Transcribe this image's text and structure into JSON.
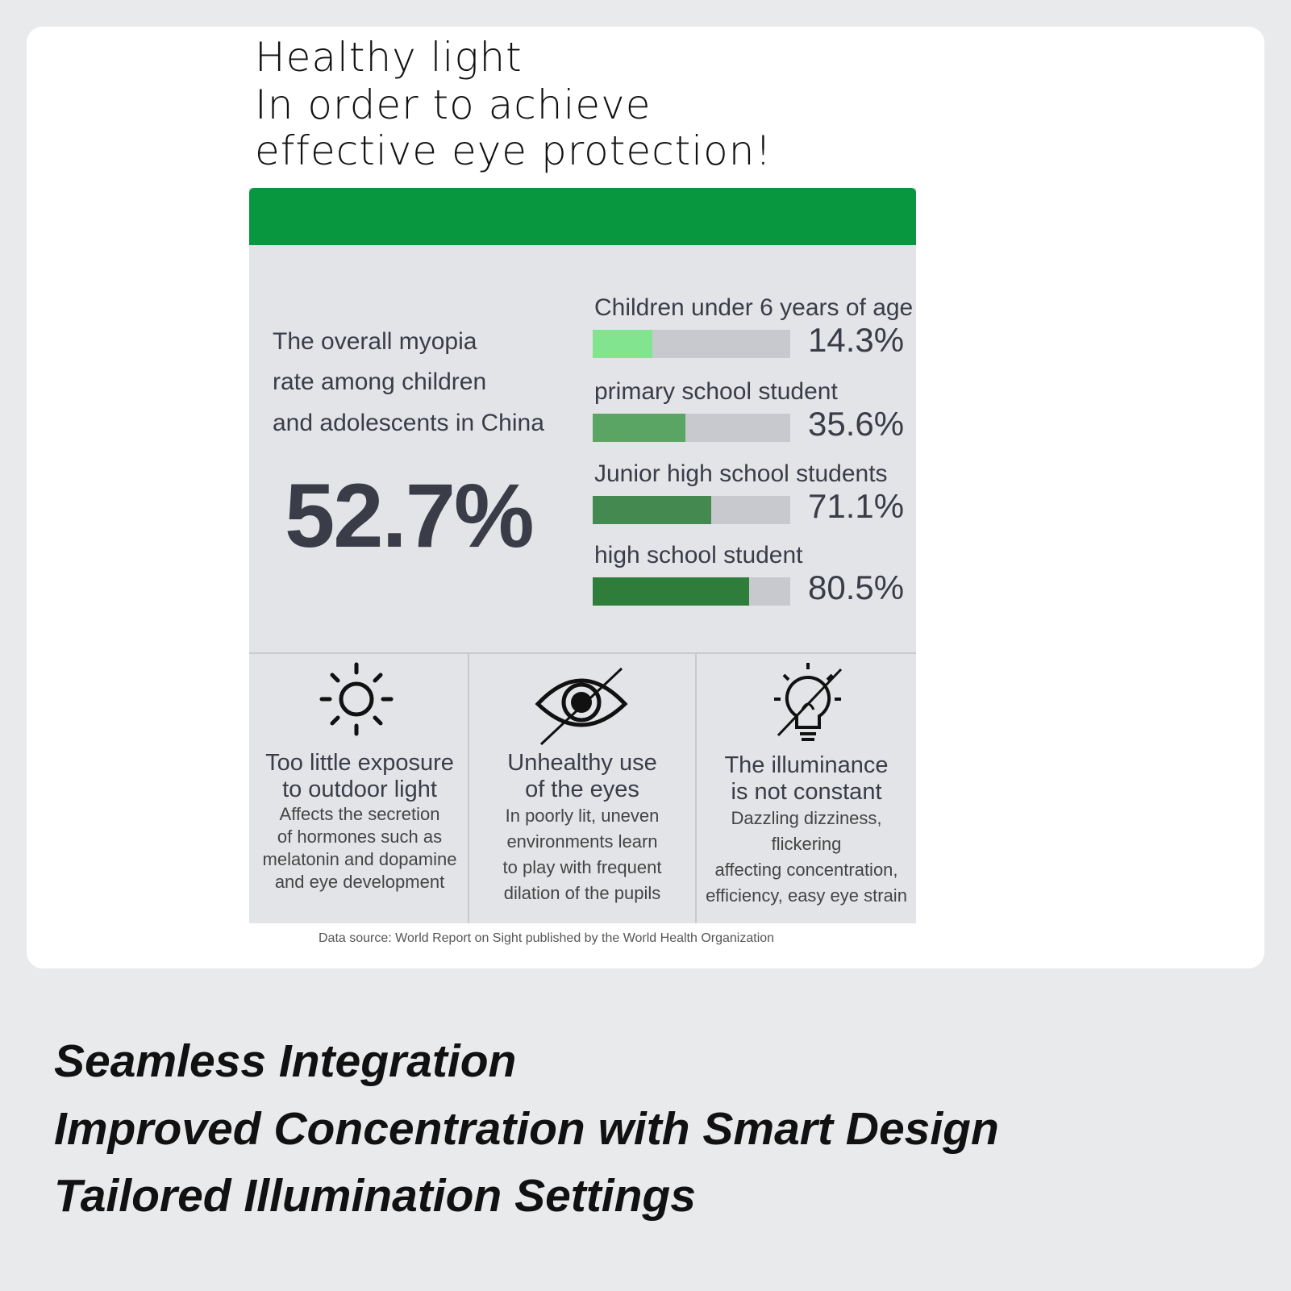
{
  "header": {
    "title_lines": [
      "Healthy light",
      "In order to achieve",
      "effective eye protection!"
    ]
  },
  "colors": {
    "header_green": "#08963e",
    "panel": "#e3e4e8",
    "track": "#c7c9ce"
  },
  "overall": {
    "lines": [
      "The overall myopia",
      "rate among children",
      "and adolescents in China"
    ],
    "value": "52.7%"
  },
  "bars": [
    {
      "label": "Children under 6 years of age",
      "value": "14.3%",
      "fill_fraction": 0.3,
      "color": "#82e48f"
    },
    {
      "label": "primary school student",
      "value": "35.6%",
      "fill_fraction": 0.47,
      "color": "#5aa564"
    },
    {
      "label": "Junior high school students",
      "value": "71.1%",
      "fill_fraction": 0.6,
      "color": "#448a50"
    },
    {
      "label": "high school student",
      "value": "80.5%",
      "fill_fraction": 0.79,
      "color": "#2e7d3b"
    }
  ],
  "causes": [
    {
      "icon": "sun-icon",
      "title": [
        "Too little exposure",
        "to outdoor light"
      ],
      "desc": [
        "Affects the secretion",
        "of hormones such as",
        "melatonin and dopamine",
        "and eye development"
      ]
    },
    {
      "icon": "eye-crossed-icon",
      "title": [
        "Unhealthy use",
        "of the eyes"
      ],
      "desc": [
        "In poorly lit, uneven",
        "environments learn",
        "to play with frequent",
        "dilation of the pupils"
      ]
    },
    {
      "icon": "lightbulb-crossed-icon",
      "title": [
        "The illuminance",
        "is not constant"
      ],
      "desc": [
        "Dazzling dizziness, flickering",
        "affecting concentration,",
        "efficiency, easy eye strain"
      ]
    }
  ],
  "source": "Data source: World Report on Sight published by the World Health Organization",
  "features": [
    "Seamless Integration",
    "Improved Concentration with Smart Design",
    "Tailored Illumination Settings"
  ]
}
